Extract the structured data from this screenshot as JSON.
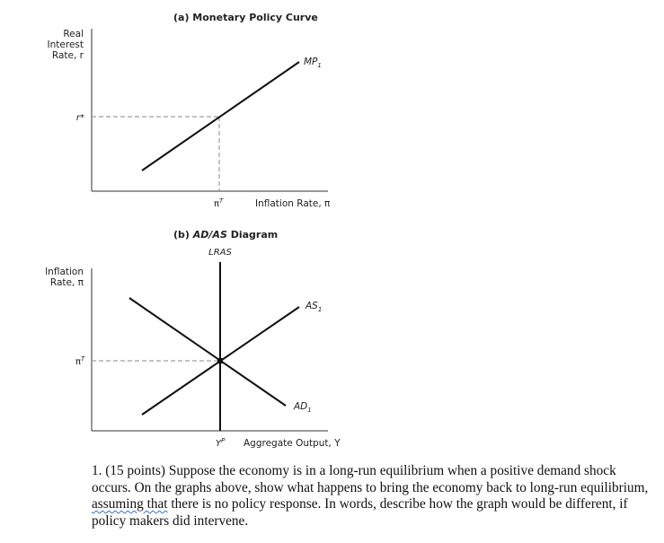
{
  "panel_a": {
    "title": "(a) Monetary Policy Curve",
    "y_label": [
      "Real",
      "Interest",
      "Rate, r"
    ],
    "x_label": "Inflation Rate, π",
    "curve_label": "MP",
    "curve_subscript": "1",
    "y_tick": "r*",
    "x_tick": "π",
    "x_tick_sup": "T"
  },
  "panel_b": {
    "title_prefix": "(b) ",
    "title_italic": "AD/AS",
    "title_suffix": " Diagram",
    "lras_label": "LRAS",
    "y_label": [
      "Inflation",
      "Rate, π"
    ],
    "x_label": "Aggregate Output, Y",
    "as_label": "AS",
    "as_subscript": "1",
    "ad_label": "AD",
    "ad_subscript": "1",
    "y_tick": "π",
    "y_tick_sup": "T",
    "x_tick": "Y",
    "x_tick_sup": "P"
  },
  "question": {
    "part1": "1. (15 points) Suppose the economy is in a long-run equilibrium when a positive demand shock occurs. On the graphs above, show what happens to bring the economy back to long-run equilibrium, ",
    "underlined": "assuming that",
    "part2": " there is no policy response. In words, describe how the graph would be different, if policy makers did intervene."
  }
}
